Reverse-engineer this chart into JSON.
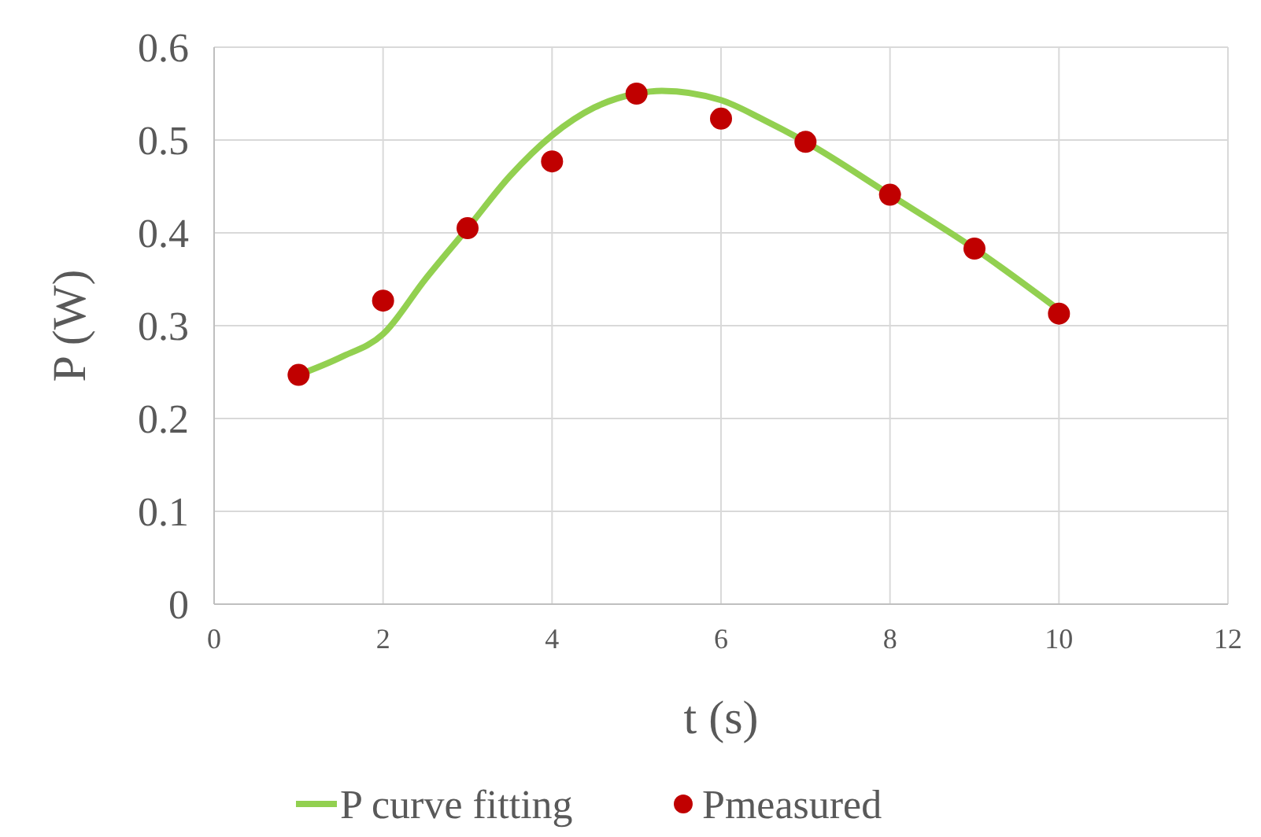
{
  "chart_data": {
    "type": "line",
    "xlabel": "t (s)",
    "ylabel": "P (W)",
    "xlim": [
      0,
      12
    ],
    "xticks": [
      0,
      2,
      4,
      6,
      8,
      10,
      12
    ],
    "ylim": [
      0,
      0.6
    ],
    "yticks": [
      0,
      0.1,
      0.2,
      0.3,
      0.4,
      0.5,
      0.6
    ],
    "grid": true,
    "legend": "bottom",
    "series": [
      {
        "name": "P curve fitting",
        "color": "#92d050",
        "marker": "none",
        "x": [
          1,
          1.5,
          2,
          2.5,
          3,
          3.5,
          4,
          4.5,
          5,
          5.3,
          6,
          6.5,
          7,
          8,
          9,
          10
        ],
        "values": [
          0.247,
          0.266,
          0.291,
          0.35,
          0.405,
          0.461,
          0.505,
          0.535,
          0.55,
          0.553,
          0.543,
          0.522,
          0.498,
          0.441,
          0.383,
          0.317
        ]
      },
      {
        "name": "Pmeasured",
        "type": "scatter",
        "color": "#c00000",
        "marker": "circle",
        "x": [
          1,
          2,
          3,
          4,
          5,
          6,
          7,
          8,
          9,
          10
        ],
        "values": [
          0.247,
          0.327,
          0.405,
          0.477,
          0.55,
          0.523,
          0.498,
          0.441,
          0.383,
          0.313
        ]
      }
    ]
  }
}
